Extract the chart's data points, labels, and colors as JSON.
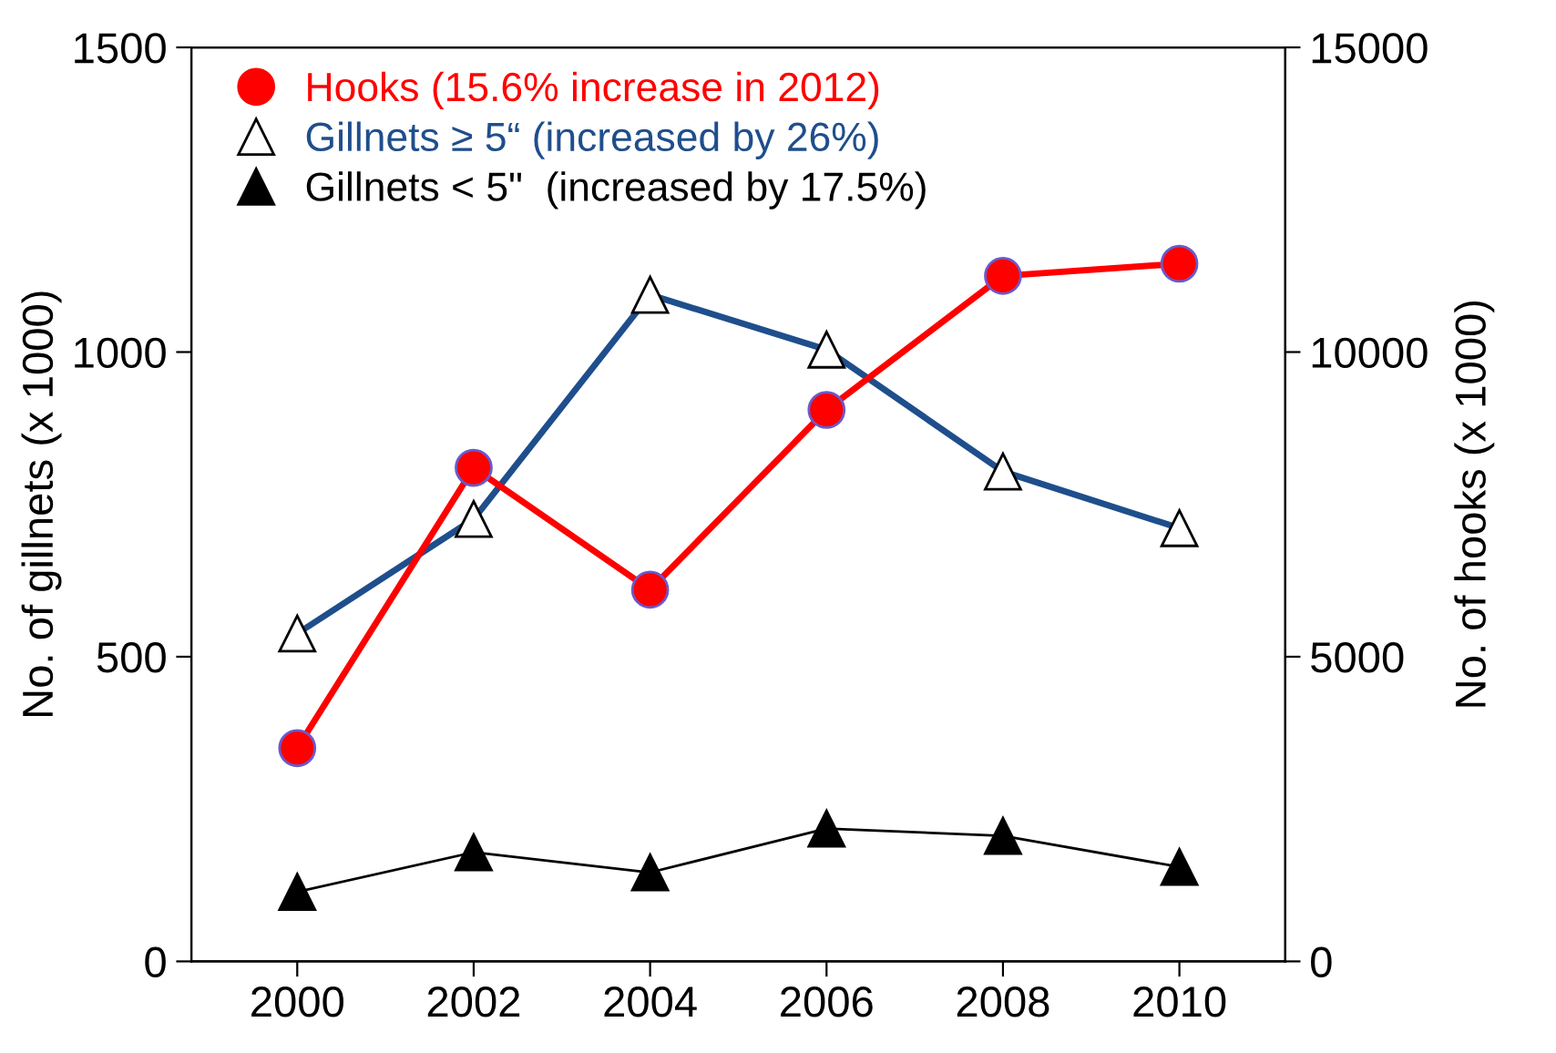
{
  "chart_data": {
    "type": "line",
    "x": [
      2000,
      2002,
      2004,
      2006,
      2008,
      2010
    ],
    "series": [
      {
        "name": "Hooks (15.6% increase in 2012)",
        "color": "#ff0000",
        "values": [
          3500,
          8100,
          6100,
          9050,
          11250,
          11450
        ],
        "axis": "y2",
        "marker": "circle"
      },
      {
        "name": "Gillnets ≥ 5“ (increased by 26%)",
        "color": "#1f4e8c",
        "values": [
          538,
          726,
          1094,
          1004,
          804,
          711
        ],
        "marker": "triangle"
      },
      {
        "name": "Gillnets < 5\"  (increased by 17.5%)",
        "color": "#000000",
        "values": [
          114,
          179,
          146,
          218,
          206,
          155
        ],
        "marker": "triangle"
      }
    ],
    "xlim": [
      1998.8,
      2011.2
    ],
    "xticks": [
      2000,
      2002,
      2004,
      2006,
      2008,
      2010
    ],
    "ylim": [
      0,
      1500
    ],
    "yticks": [
      0,
      500,
      1000,
      1500
    ],
    "y2lim": [
      0,
      15000
    ],
    "y2ticks": [
      0,
      5000,
      10000,
      15000
    ],
    "ylabel": "No. of gillnets (x 1000)",
    "y2label": "No. of hooks (x 1000)",
    "grid": false,
    "legend": "top left"
  }
}
